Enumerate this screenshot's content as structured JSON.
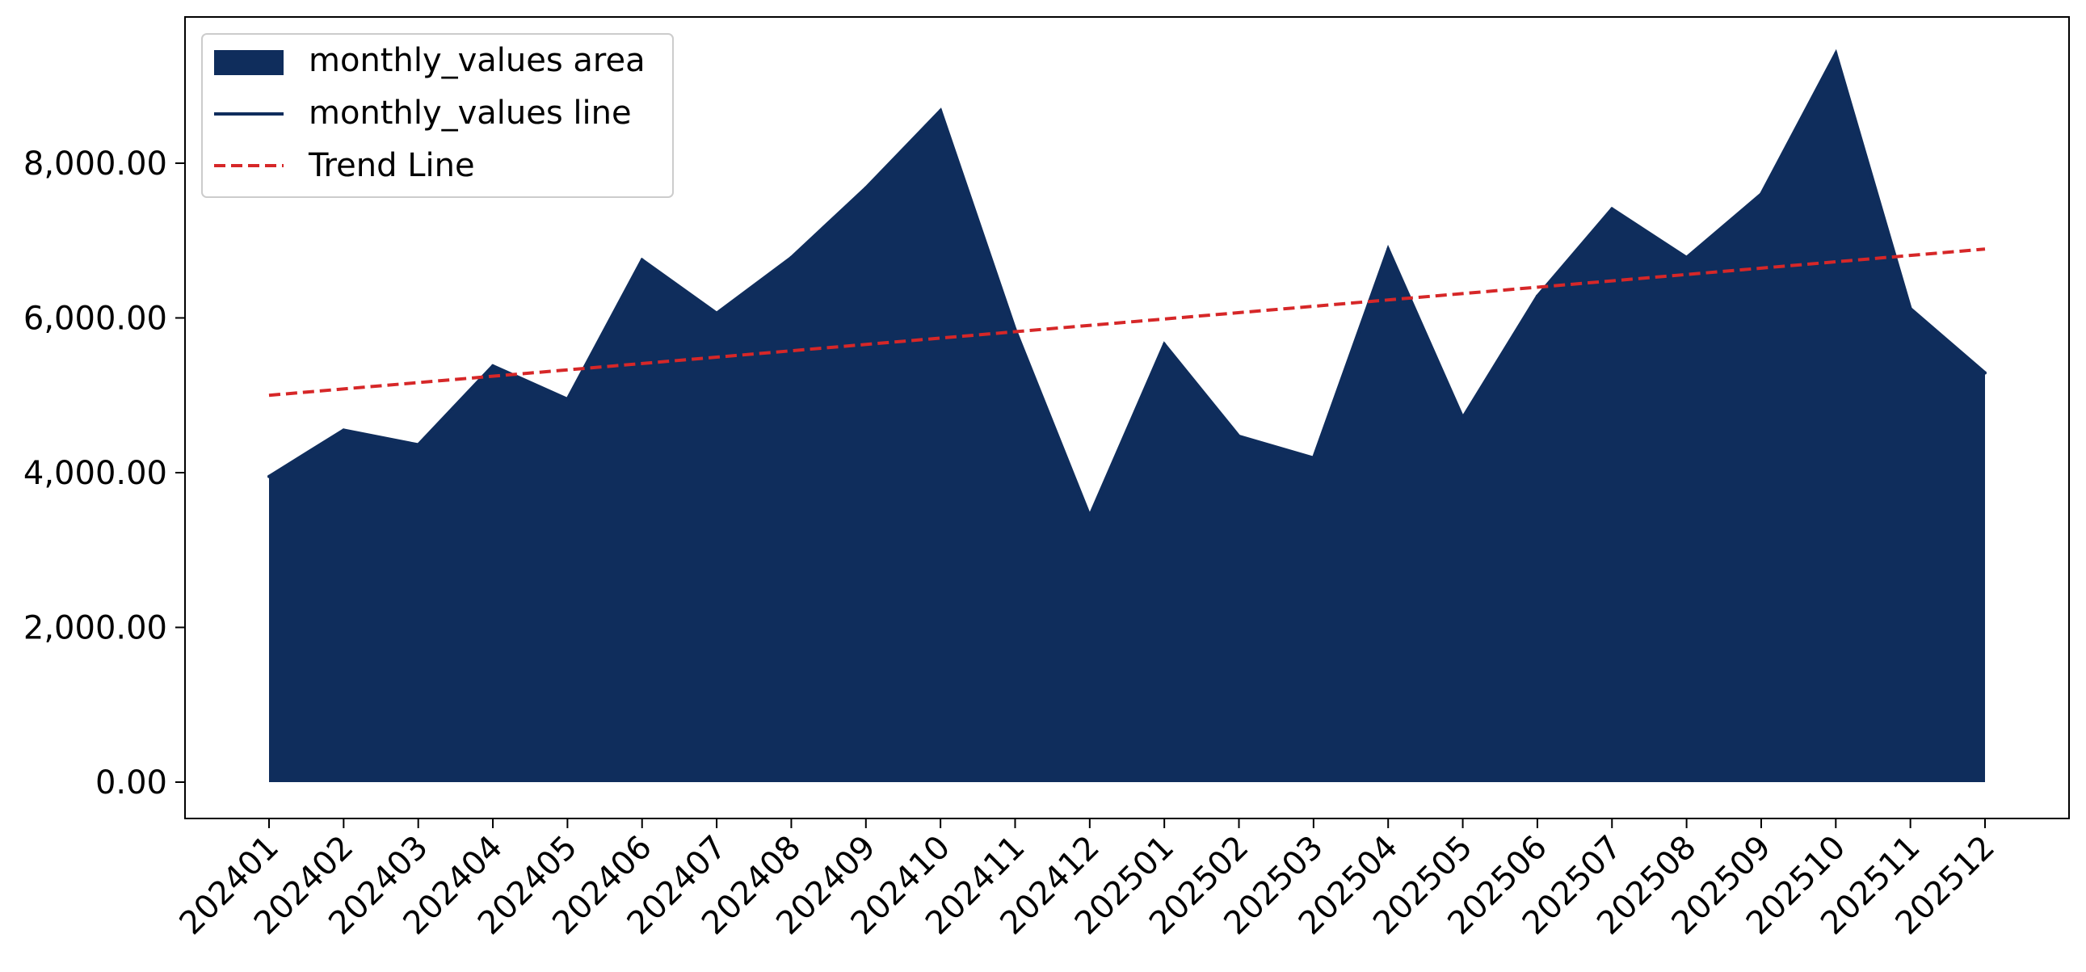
{
  "chart_data": {
    "type": "area",
    "title": "",
    "xlabel": "",
    "ylabel": "",
    "categories": [
      "202401",
      "202402",
      "202403",
      "202404",
      "202405",
      "202406",
      "202407",
      "202408",
      "202409",
      "202410",
      "202411",
      "202412",
      "202501",
      "202502",
      "202503",
      "202504",
      "202505",
      "202506",
      "202507",
      "202508",
      "202509",
      "202510",
      "202511",
      "202512"
    ],
    "series": [
      {
        "name": "monthly_values area",
        "kind": "area",
        "color": "#0f2d5c",
        "values": [
          3950,
          4550,
          4360,
          5380,
          4950,
          6750,
          6060,
          6780,
          7680,
          8680,
          5850,
          3440,
          5660,
          4470,
          4190,
          6890,
          4710,
          6280,
          7410,
          6780,
          7600,
          9420,
          6120,
          5290
        ]
      },
      {
        "name": "monthly_values line",
        "kind": "line",
        "color": "#0f2d5c",
        "values": [
          3950,
          4550,
          4360,
          5380,
          4950,
          6750,
          6060,
          6780,
          7680,
          8680,
          5850,
          3440,
          5660,
          4470,
          4190,
          6890,
          4710,
          6280,
          7410,
          6780,
          7600,
          9420,
          6120,
          5290
        ]
      },
      {
        "name": "Trend Line",
        "kind": "trend",
        "color": "#d62728",
        "dashed": true,
        "start": 5000,
        "end": 6890
      }
    ],
    "yticks": [
      "0.00",
      "2,000.00",
      "4,000.00",
      "6,000.00",
      "8,000.00"
    ],
    "ytick_values": [
      0,
      2000,
      4000,
      6000,
      8000
    ],
    "ylim": [
      -470,
      9890
    ],
    "grid": false,
    "legend_position": "top-left"
  }
}
